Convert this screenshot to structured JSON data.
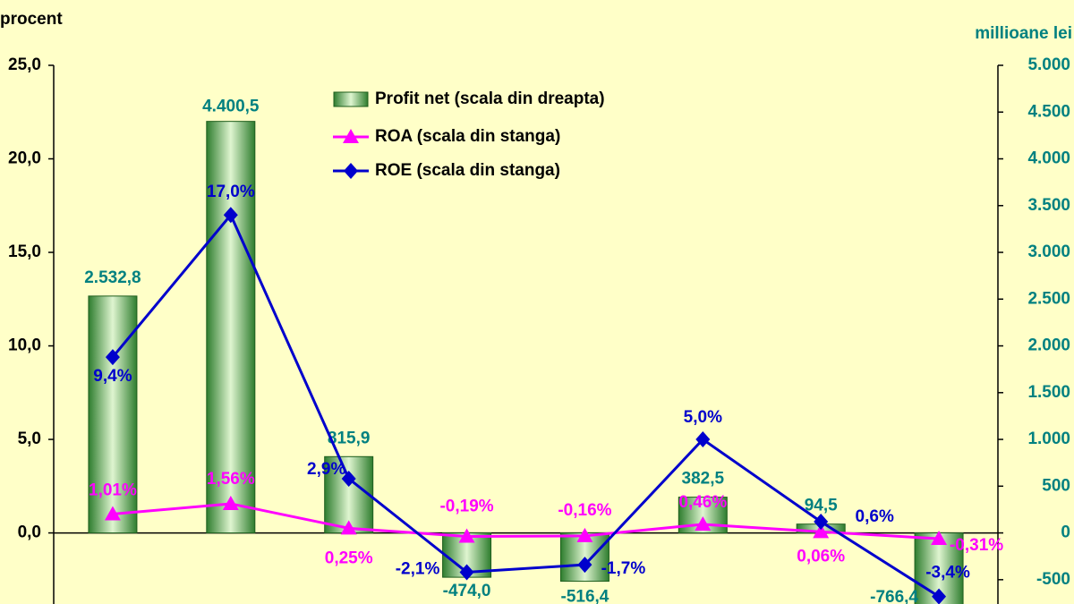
{
  "chart_data": {
    "type": "combo",
    "y_label": "procent",
    "y2_label": "millioane lei",
    "categories": [
      null,
      null,
      null,
      null,
      null,
      null,
      null,
      null
    ],
    "series": [
      {
        "name": "Profit net (scala din dreapta)",
        "type": "bar",
        "axis": "y2",
        "color": "#3a9a3a",
        "values": [
          2532.8,
          4400.5,
          815.9,
          -474.0,
          -516.4,
          382.5,
          94.5,
          -766.4
        ],
        "value_labels": [
          "2.532,8",
          "4.400,5",
          "815,9",
          "-474,0",
          "-516,4",
          "382,5",
          "94,5",
          "-766,4"
        ]
      },
      {
        "name": "ROA (scala din stanga)",
        "type": "line",
        "marker": "triangle",
        "color": "#ff00ff",
        "values": [
          1.01,
          1.56,
          0.25,
          -0.19,
          -0.16,
          0.46,
          0.06,
          -0.31
        ],
        "value_labels": [
          "1,01%",
          "1,56%",
          "0,25%",
          "-0,19%",
          "-0,16%",
          "0,46%",
          "0,06%",
          "-0,31%"
        ]
      },
      {
        "name": "ROE (scala din stanga)",
        "type": "line",
        "marker": "diamond",
        "color": "#0000cc",
        "values": [
          9.4,
          17.0,
          2.9,
          -2.1,
          -1.7,
          5.0,
          0.6,
          -3.4
        ],
        "value_labels": [
          "9,4%",
          "17,0%",
          "2,9%",
          "-2,1%",
          "-1,7%",
          "5,0%",
          "0,6%",
          "-3,4%"
        ]
      }
    ],
    "ylim": [
      -3.8,
      25
    ],
    "yticks": [
      {
        "value": 0,
        "label": "0,0"
      },
      {
        "value": 5,
        "label": "5,0"
      },
      {
        "value": 10,
        "label": "10,0"
      },
      {
        "value": 15,
        "label": "15,0"
      },
      {
        "value": 20,
        "label": "20,0"
      },
      {
        "value": 25,
        "label": "25,0"
      }
    ],
    "y2lim": [
      -760,
      5000
    ],
    "y2ticks": [
      -500,
      0,
      500,
      {
        "value": 1000,
        "label": "1.000"
      },
      {
        "value": 1500,
        "label": "1.500"
      },
      {
        "value": 2000,
        "label": "2.000"
      },
      {
        "value": 2500,
        "label": "2.500"
      },
      {
        "value": 3000,
        "label": "3.000"
      },
      {
        "value": 3500,
        "label": "3.500"
      },
      {
        "value": 4000,
        "label": "4.000"
      },
      {
        "value": 4500,
        "label": "4.500"
      },
      {
        "value": 5000,
        "label": "5.000"
      }
    ]
  }
}
